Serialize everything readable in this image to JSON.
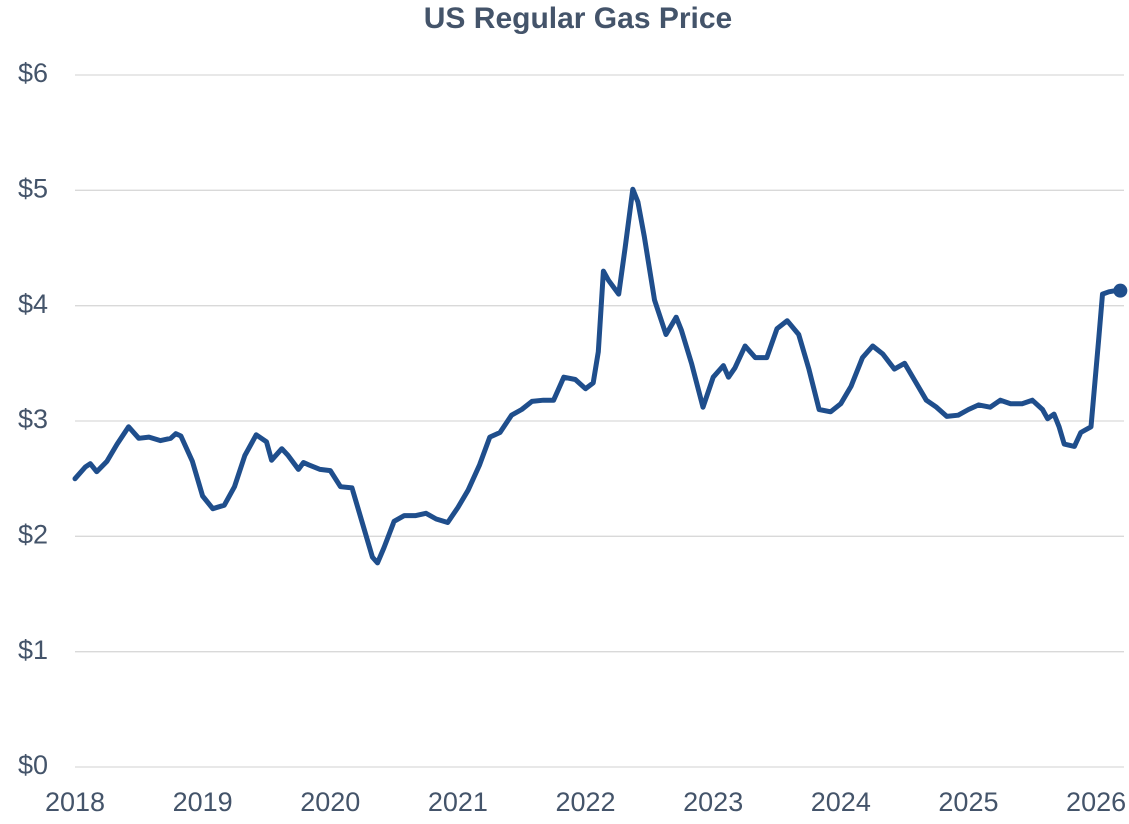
{
  "chart_data": {
    "type": "line",
    "title": "US Regular Gas Price",
    "xlim": [
      2018,
      2026.25
    ],
    "xticks": [
      2018,
      2019,
      2020,
      2021,
      2022,
      2023,
      2024,
      2025,
      2026
    ],
    "ylim": [
      0,
      6
    ],
    "yticks": [
      {
        "value": 0,
        "label": "$0"
      },
      {
        "value": 1,
        "label": "$1"
      },
      {
        "value": 2,
        "label": "$2"
      },
      {
        "value": 3,
        "label": "$3"
      },
      {
        "value": 4,
        "label": "$4"
      },
      {
        "value": 5,
        "label": "$5"
      },
      {
        "value": 6,
        "label": "$6"
      }
    ],
    "grid": true,
    "end_marker": true,
    "series": [
      {
        "color": "#1f4e8c",
        "x": [
          2018.0,
          2018.08,
          2018.12,
          2018.17,
          2018.25,
          2018.33,
          2018.42,
          2018.5,
          2018.58,
          2018.67,
          2018.75,
          2018.79,
          2018.83,
          2018.92,
          2019.0,
          2019.08,
          2019.17,
          2019.25,
          2019.33,
          2019.42,
          2019.5,
          2019.54,
          2019.62,
          2019.67,
          2019.75,
          2019.79,
          2019.83,
          2019.92,
          2020.0,
          2020.08,
          2020.17,
          2020.25,
          2020.33,
          2020.37,
          2020.42,
          2020.5,
          2020.58,
          2020.67,
          2020.75,
          2020.83,
          2020.92,
          2021.0,
          2021.08,
          2021.17,
          2021.25,
          2021.33,
          2021.42,
          2021.5,
          2021.58,
          2021.67,
          2021.75,
          2021.83,
          2021.92,
          2022.0,
          2022.06,
          2022.1,
          2022.14,
          2022.18,
          2022.26,
          2022.31,
          2022.37,
          2022.41,
          2022.46,
          2022.54,
          2022.63,
          2022.71,
          2022.75,
          2022.83,
          2022.92,
          2023.0,
          2023.08,
          2023.12,
          2023.17,
          2023.25,
          2023.33,
          2023.42,
          2023.5,
          2023.58,
          2023.67,
          2023.75,
          2023.83,
          2023.92,
          2024.0,
          2024.08,
          2024.17,
          2024.25,
          2024.33,
          2024.42,
          2024.5,
          2024.58,
          2024.67,
          2024.75,
          2024.83,
          2024.92,
          2025.0,
          2025.08,
          2025.17,
          2025.25,
          2025.33,
          2025.42,
          2025.5,
          2025.58,
          2025.62,
          2025.67,
          2025.71,
          2025.75,
          2025.83,
          2025.88,
          2025.96,
          2026.02,
          2026.05,
          2026.1,
          2026.15,
          2026.19
        ],
        "values": [
          2.5,
          2.6,
          2.63,
          2.56,
          2.65,
          2.8,
          2.95,
          2.85,
          2.86,
          2.83,
          2.85,
          2.89,
          2.87,
          2.65,
          2.35,
          2.24,
          2.27,
          2.43,
          2.7,
          2.88,
          2.82,
          2.66,
          2.76,
          2.7,
          2.58,
          2.64,
          2.62,
          2.58,
          2.57,
          2.43,
          2.42,
          2.12,
          1.82,
          1.77,
          1.9,
          2.13,
          2.18,
          2.18,
          2.2,
          2.15,
          2.12,
          2.25,
          2.4,
          2.62,
          2.86,
          2.9,
          3.05,
          3.1,
          3.17,
          3.18,
          3.18,
          3.38,
          3.36,
          3.28,
          3.33,
          3.6,
          4.3,
          4.22,
          4.1,
          4.5,
          5.01,
          4.9,
          4.6,
          4.05,
          3.75,
          3.9,
          3.79,
          3.5,
          3.12,
          3.38,
          3.48,
          3.38,
          3.46,
          3.65,
          3.55,
          3.55,
          3.8,
          3.87,
          3.75,
          3.45,
          3.1,
          3.08,
          3.15,
          3.3,
          3.55,
          3.65,
          3.58,
          3.45,
          3.5,
          3.35,
          3.18,
          3.12,
          3.04,
          3.05,
          3.1,
          3.14,
          3.12,
          3.18,
          3.15,
          3.15,
          3.18,
          3.1,
          3.02,
          3.06,
          2.95,
          2.8,
          2.78,
          2.9,
          2.95,
          3.7,
          4.1,
          4.12,
          4.13,
          4.13
        ]
      }
    ]
  }
}
